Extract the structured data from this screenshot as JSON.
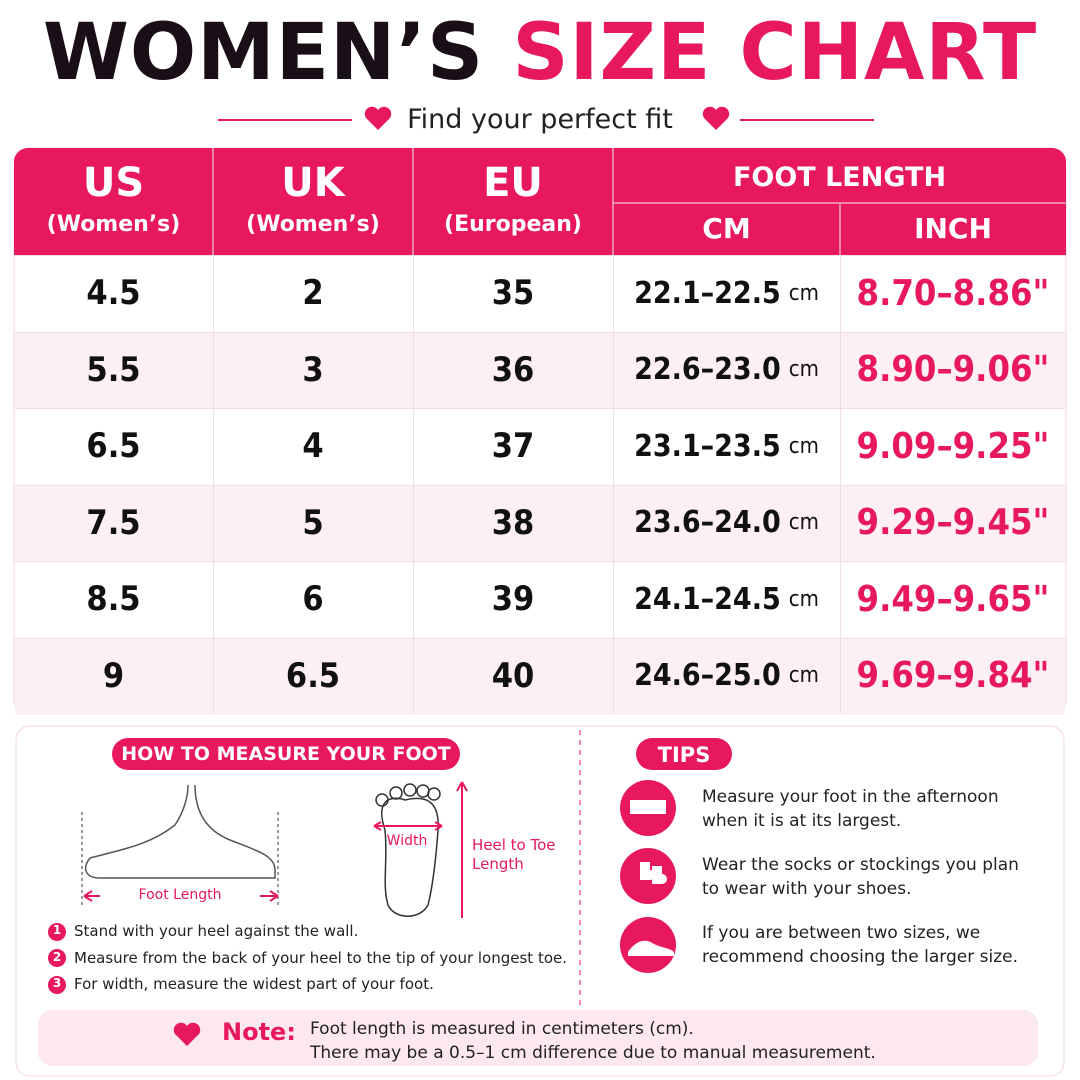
{
  "title": {
    "dark": "WOMEN’S",
    "pink": "SIZE CHART"
  },
  "subtitle": "Find your perfect fit",
  "table": {
    "headers": {
      "us": "US",
      "us_sub": "(Women’s)",
      "uk": "UK",
      "uk_sub": "(Women’s)",
      "eu": "EU",
      "eu_sub": "(European)",
      "foot_length": "FOOT LENGTH",
      "cm": "CM",
      "inch": "INCH"
    },
    "rows": [
      [
        "4.5",
        "2",
        "35",
        "22.1–22.5",
        "cm",
        "8.70–8.86\""
      ],
      [
        "5.5",
        "3",
        "36",
        "22.6–23.0",
        "cm",
        "8.90–9.06\""
      ],
      [
        "6.5",
        "4",
        "37",
        "23.1–23.5",
        "cm",
        "9.09–9.25\""
      ],
      [
        "7.5",
        "5",
        "38",
        "23.6–24.0",
        "cm",
        "9.29–9.45\""
      ],
      [
        "8.5",
        "6",
        "39",
        "24.1–24.5",
        "cm",
        "9.49–9.65\""
      ],
      [
        "9",
        "6.5",
        "40",
        "24.6–25.0",
        "cm",
        "9.69–9.84\""
      ]
    ]
  },
  "measure": {
    "title": "HOW TO MEASURE YOUR FOOT",
    "foot_length": "Foot Length",
    "width": "Width",
    "heel_to_toe": "Heel to Toe Length",
    "steps": [
      {
        "num": "1",
        "text": "Stand with your heel against the wall."
      },
      {
        "num": "2",
        "text": "Measure from the back of your heel to the tip of your longest toe."
      },
      {
        "num": "3",
        "text": "For width, measure the widest part of your foot."
      }
    ]
  },
  "tips": {
    "title": "TIPS",
    "items": [
      "Measure your foot in the afternoon when it is at its largest.",
      "Wear the socks or stockings you plan to wear with your shoes.",
      "If you are between two sizes, we recommend choosing the larger size."
    ]
  },
  "note": {
    "label": "Note:",
    "lines": [
      "Foot length is measured in centimeters (cm).",
      "There may be a 0.5–1 cm difference due to manual measurement."
    ]
  }
}
